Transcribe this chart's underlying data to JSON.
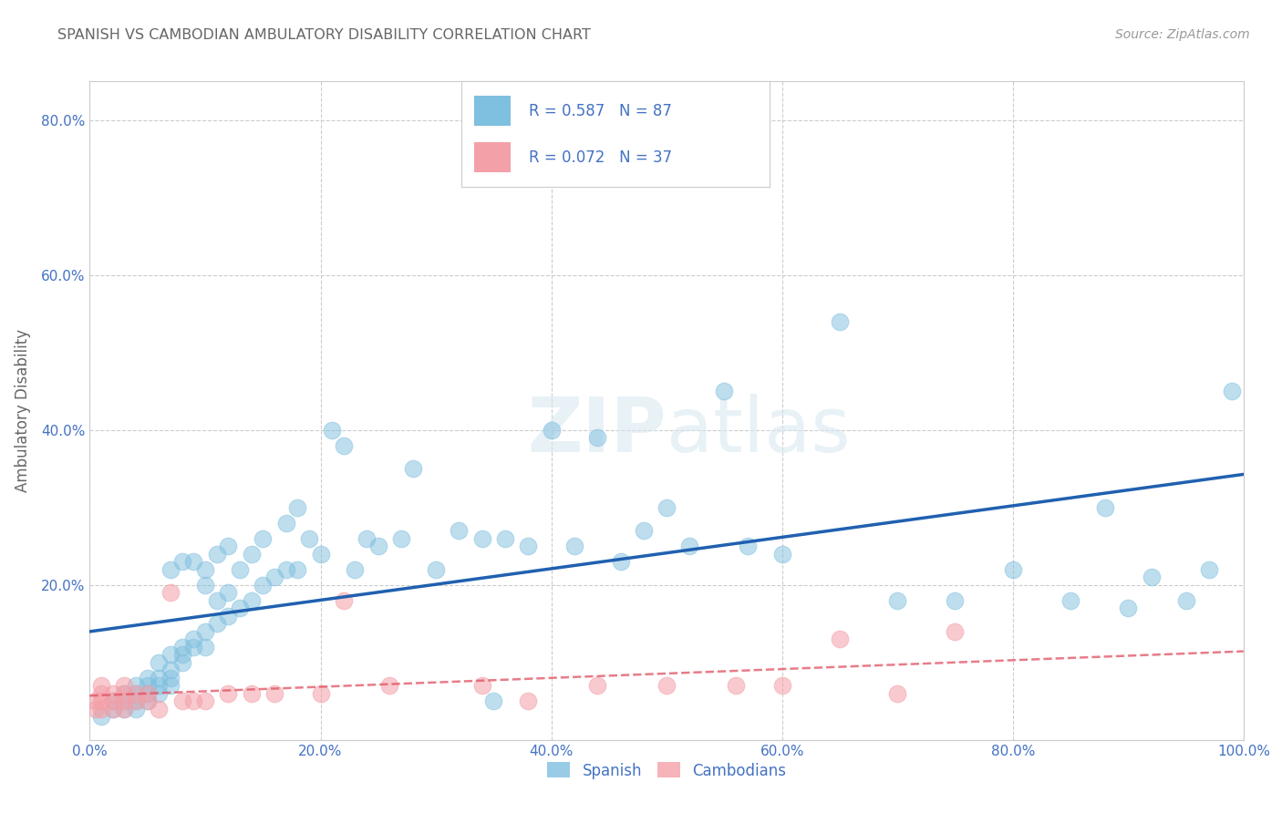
{
  "title": "SPANISH VS CAMBODIAN AMBULATORY DISABILITY CORRELATION CHART",
  "source": "Source: ZipAtlas.com",
  "ylabel": "Ambulatory Disability",
  "xlim": [
    0.0,
    1.0
  ],
  "ylim": [
    0.0,
    0.85
  ],
  "xticks": [
    0.0,
    0.2,
    0.4,
    0.6,
    0.8,
    1.0
  ],
  "yticks": [
    0.0,
    0.2,
    0.4,
    0.6,
    0.8
  ],
  "xtick_labels": [
    "0.0%",
    "20.0%",
    "40.0%",
    "60.0%",
    "80.0%",
    "100.0%"
  ],
  "ytick_labels": [
    "",
    "20.0%",
    "40.0%",
    "60.0%",
    "80.0%"
  ],
  "spanish_R": 0.587,
  "spanish_N": 87,
  "cambodian_R": 0.072,
  "cambodian_N": 37,
  "spanish_color": "#7fbfdf",
  "cambodian_color": "#f4a0a8",
  "spanish_line_color": "#2060b0",
  "cambodian_line_color": "#e05060",
  "watermark": "ZIPatlas",
  "background_color": "#ffffff",
  "grid_color": "#cccccc",
  "title_color": "#666666",
  "axis_color": "#4472c4",
  "spanish_x": [
    0.01,
    0.02,
    0.02,
    0.03,
    0.03,
    0.03,
    0.04,
    0.04,
    0.04,
    0.04,
    0.05,
    0.05,
    0.05,
    0.05,
    0.06,
    0.06,
    0.06,
    0.06,
    0.07,
    0.07,
    0.07,
    0.07,
    0.07,
    0.08,
    0.08,
    0.08,
    0.08,
    0.09,
    0.09,
    0.09,
    0.1,
    0.1,
    0.1,
    0.1,
    0.11,
    0.11,
    0.11,
    0.12,
    0.12,
    0.12,
    0.13,
    0.13,
    0.14,
    0.14,
    0.15,
    0.15,
    0.16,
    0.17,
    0.17,
    0.18,
    0.18,
    0.19,
    0.2,
    0.21,
    0.22,
    0.23,
    0.24,
    0.25,
    0.27,
    0.28,
    0.3,
    0.32,
    0.34,
    0.36,
    0.38,
    0.4,
    0.42,
    0.44,
    0.46,
    0.48,
    0.5,
    0.52,
    0.55,
    0.57,
    0.6,
    0.65,
    0.7,
    0.75,
    0.8,
    0.85,
    0.88,
    0.9,
    0.92,
    0.95,
    0.97,
    0.99,
    0.35
  ],
  "spanish_y": [
    0.03,
    0.04,
    0.05,
    0.04,
    0.05,
    0.06,
    0.04,
    0.05,
    0.06,
    0.07,
    0.05,
    0.06,
    0.07,
    0.08,
    0.06,
    0.07,
    0.08,
    0.1,
    0.07,
    0.08,
    0.09,
    0.11,
    0.22,
    0.1,
    0.11,
    0.12,
    0.23,
    0.12,
    0.13,
    0.23,
    0.12,
    0.14,
    0.2,
    0.22,
    0.15,
    0.18,
    0.24,
    0.16,
    0.19,
    0.25,
    0.17,
    0.22,
    0.18,
    0.24,
    0.2,
    0.26,
    0.21,
    0.22,
    0.28,
    0.22,
    0.3,
    0.26,
    0.24,
    0.4,
    0.38,
    0.22,
    0.26,
    0.25,
    0.26,
    0.35,
    0.22,
    0.27,
    0.26,
    0.26,
    0.25,
    0.4,
    0.25,
    0.39,
    0.23,
    0.27,
    0.3,
    0.25,
    0.45,
    0.25,
    0.24,
    0.54,
    0.18,
    0.18,
    0.22,
    0.18,
    0.3,
    0.17,
    0.21,
    0.18,
    0.22,
    0.45,
    0.05
  ],
  "cambodian_x": [
    0.005,
    0.005,
    0.01,
    0.01,
    0.01,
    0.01,
    0.02,
    0.02,
    0.02,
    0.03,
    0.03,
    0.03,
    0.03,
    0.04,
    0.04,
    0.05,
    0.05,
    0.06,
    0.07,
    0.08,
    0.09,
    0.1,
    0.12,
    0.14,
    0.16,
    0.2,
    0.22,
    0.26,
    0.34,
    0.38,
    0.44,
    0.5,
    0.56,
    0.6,
    0.65,
    0.7,
    0.75
  ],
  "cambodian_y": [
    0.04,
    0.05,
    0.04,
    0.05,
    0.06,
    0.07,
    0.04,
    0.05,
    0.06,
    0.04,
    0.05,
    0.06,
    0.07,
    0.05,
    0.06,
    0.05,
    0.06,
    0.04,
    0.19,
    0.05,
    0.05,
    0.05,
    0.06,
    0.06,
    0.06,
    0.06,
    0.18,
    0.07,
    0.07,
    0.05,
    0.07,
    0.07,
    0.07,
    0.07,
    0.13,
    0.06,
    0.14
  ]
}
